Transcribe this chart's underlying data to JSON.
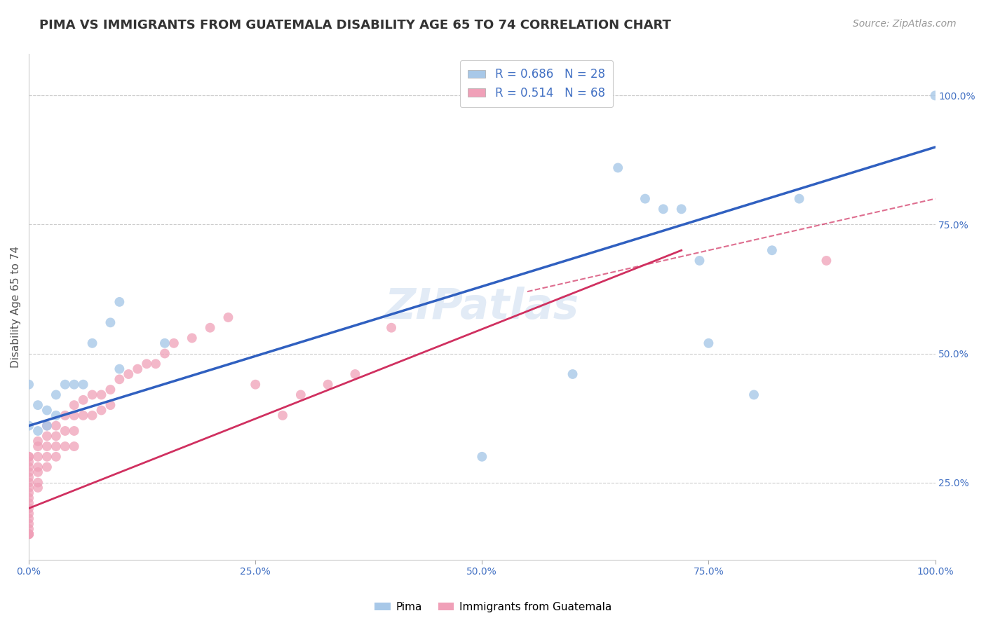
{
  "title": "PIMA VS IMMIGRANTS FROM GUATEMALA DISABILITY AGE 65 TO 74 CORRELATION CHART",
  "source_text": "Source: ZipAtlas.com",
  "ylabel": "Disability Age 65 to 74",
  "xlabel": "",
  "legend_label1": "Pima",
  "legend_label2": "Immigrants from Guatemala",
  "r1": 0.686,
  "n1": 28,
  "r2": 0.514,
  "n2": 68,
  "color1": "#a8c8e8",
  "color2": "#f0a0b8",
  "line_color1": "#3060c0",
  "line_color2": "#d03060",
  "watermark": "ZIPatlas",
  "pima_x": [
    0.0,
    0.0,
    0.01,
    0.01,
    0.02,
    0.02,
    0.03,
    0.03,
    0.04,
    0.05,
    0.06,
    0.07,
    0.09,
    0.1,
    0.1,
    0.15,
    0.5,
    0.6,
    0.65,
    0.68,
    0.7,
    0.72,
    0.74,
    0.75,
    0.8,
    0.82,
    0.85,
    1.0
  ],
  "pima_y": [
    0.36,
    0.44,
    0.4,
    0.35,
    0.39,
    0.36,
    0.42,
    0.38,
    0.44,
    0.44,
    0.44,
    0.52,
    0.56,
    0.47,
    0.6,
    0.52,
    0.3,
    0.46,
    0.86,
    0.8,
    0.78,
    0.78,
    0.68,
    0.52,
    0.42,
    0.7,
    0.8,
    1.0
  ],
  "guate_x": [
    0.0,
    0.0,
    0.0,
    0.0,
    0.0,
    0.0,
    0.0,
    0.0,
    0.0,
    0.0,
    0.0,
    0.0,
    0.0,
    0.0,
    0.0,
    0.0,
    0.0,
    0.0,
    0.0,
    0.0,
    0.01,
    0.01,
    0.01,
    0.01,
    0.01,
    0.01,
    0.01,
    0.02,
    0.02,
    0.02,
    0.02,
    0.02,
    0.03,
    0.03,
    0.03,
    0.03,
    0.04,
    0.04,
    0.04,
    0.05,
    0.05,
    0.05,
    0.05,
    0.06,
    0.06,
    0.07,
    0.07,
    0.08,
    0.08,
    0.09,
    0.09,
    0.1,
    0.11,
    0.12,
    0.13,
    0.14,
    0.15,
    0.16,
    0.18,
    0.2,
    0.22,
    0.25,
    0.28,
    0.3,
    0.33,
    0.36,
    0.4,
    0.88
  ],
  "guate_y": [
    0.3,
    0.3,
    0.29,
    0.28,
    0.27,
    0.26,
    0.25,
    0.24,
    0.23,
    0.22,
    0.21,
    0.2,
    0.19,
    0.18,
    0.17,
    0.16,
    0.15,
    0.15,
    0.15,
    0.15,
    0.33,
    0.32,
    0.3,
    0.28,
    0.27,
    0.25,
    0.24,
    0.36,
    0.34,
    0.32,
    0.3,
    0.28,
    0.36,
    0.34,
    0.32,
    0.3,
    0.38,
    0.35,
    0.32,
    0.4,
    0.38,
    0.35,
    0.32,
    0.41,
    0.38,
    0.42,
    0.38,
    0.42,
    0.39,
    0.43,
    0.4,
    0.45,
    0.46,
    0.47,
    0.48,
    0.48,
    0.5,
    0.52,
    0.53,
    0.55,
    0.57,
    0.44,
    0.38,
    0.42,
    0.44,
    0.46,
    0.55,
    0.68
  ],
  "xlim": [
    0.0,
    1.0
  ],
  "ylim": [
    0.1,
    1.08
  ],
  "xticks": [
    0.0,
    0.25,
    0.5,
    0.75,
    1.0
  ],
  "xticklabels": [
    "0.0%",
    "25.0%",
    "50.0%",
    "75.0%",
    "100.0%"
  ],
  "ytick_right": [
    0.25,
    0.5,
    0.75,
    1.0
  ],
  "ytick_right_labels": [
    "25.0%",
    "50.0%",
    "75.0%",
    "100.0%"
  ],
  "blue_line_x": [
    0.0,
    1.0
  ],
  "blue_line_y": [
    0.36,
    0.9
  ],
  "pink_solid_line_x": [
    0.0,
    0.72
  ],
  "pink_solid_line_y": [
    0.2,
    0.7
  ],
  "pink_dashed_line_x": [
    0.55,
    1.0
  ],
  "pink_dashed_line_y": [
    0.62,
    0.8
  ],
  "grid_color": "#cccccc",
  "bg_color": "#ffffff",
  "title_fontsize": 13,
  "axis_label_fontsize": 11,
  "tick_fontsize": 10,
  "source_fontsize": 10
}
